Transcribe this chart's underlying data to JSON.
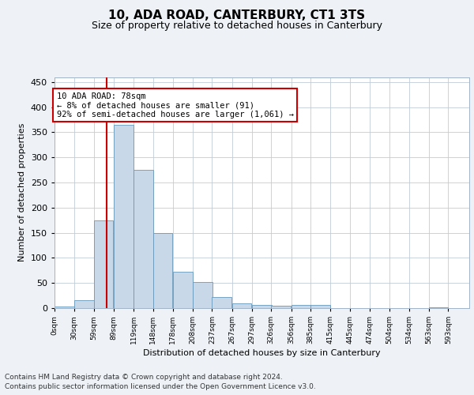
{
  "title": "10, ADA ROAD, CANTERBURY, CT1 3TS",
  "subtitle": "Size of property relative to detached houses in Canterbury",
  "xlabel": "Distribution of detached houses by size in Canterbury",
  "ylabel": "Number of detached properties",
  "footer_line1": "Contains HM Land Registry data © Crown copyright and database right 2024.",
  "footer_line2": "Contains public sector information licensed under the Open Government Licence v3.0.",
  "annotation_title": "10 ADA ROAD: 78sqm",
  "annotation_line2": "← 8% of detached houses are smaller (91)",
  "annotation_line3": "92% of semi-detached houses are larger (1,061) →",
  "property_line_x": 78,
  "bar_width": 29.5,
  "bin_starts": [
    0,
    30,
    59,
    89,
    119,
    148,
    178,
    208,
    237,
    267,
    297,
    326,
    356,
    385,
    415,
    445,
    474,
    504,
    534,
    563
  ],
  "bar_heights": [
    3,
    15,
    175,
    365,
    275,
    150,
    72,
    52,
    22,
    10,
    7,
    5,
    6,
    6,
    0,
    0,
    0,
    0,
    0,
    2
  ],
  "bar_color": "#c8d8e8",
  "bar_edge_color": "#6699bb",
  "vline_color": "#cc0000",
  "annotation_box_color": "#cc0000",
  "background_color": "#eef2f7",
  "plot_background": "#ffffff",
  "ylim": [
    0,
    460
  ],
  "yticks": [
    0,
    50,
    100,
    150,
    200,
    250,
    300,
    350,
    400,
    450
  ],
  "tick_labels": [
    "0sqm",
    "30sqm",
    "59sqm",
    "89sqm",
    "119sqm",
    "148sqm",
    "178sqm",
    "208sqm",
    "237sqm",
    "267sqm",
    "297sqm",
    "326sqm",
    "356sqm",
    "385sqm",
    "415sqm",
    "445sqm",
    "474sqm",
    "504sqm",
    "534sqm",
    "563sqm",
    "593sqm"
  ],
  "xlim_max": 624,
  "title_fontsize": 11,
  "subtitle_fontsize": 9,
  "ylabel_fontsize": 8,
  "xlabel_fontsize": 8,
  "ytick_fontsize": 8,
  "xtick_fontsize": 6.5,
  "annotation_fontsize": 7.5,
  "footer_fontsize": 6.5
}
